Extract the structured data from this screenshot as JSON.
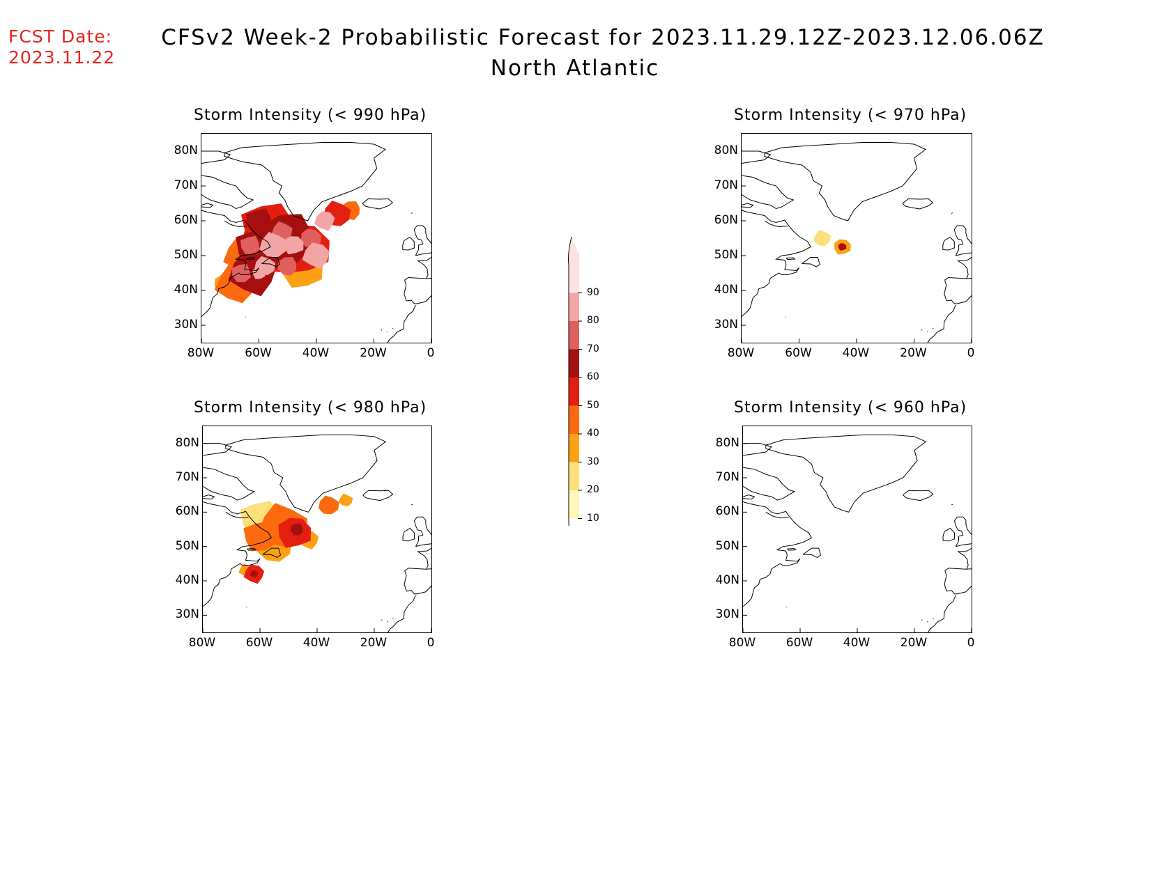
{
  "fcst": {
    "label": "FCST Date:",
    "date": "2023.11.22"
  },
  "title": {
    "line1": "CFSv2 Week-2 Probabilistic Forecast for 2023.11.29.12Z-2023.12.06.06Z",
    "line2": "North Atlantic"
  },
  "panels": [
    {
      "title": "Storm Intensity (< 990 hPa)",
      "threshold": 990
    },
    {
      "title": "Storm Intensity (< 970 hPa)",
      "threshold": 970
    },
    {
      "title": "Storm Intensity (< 980 hPa)",
      "threshold": 980
    },
    {
      "title": "Storm Intensity (< 960 hPa)",
      "threshold": 960
    }
  ],
  "axes": {
    "lat_ticks": [
      "80N",
      "70N",
      "60N",
      "50N",
      "40N",
      "30N"
    ],
    "lon_ticks": [
      "80W",
      "60W",
      "40W",
      "20W",
      "0"
    ],
    "lat_range": [
      25,
      85
    ],
    "lon_range": [
      -80,
      0
    ]
  },
  "colorbar": {
    "levels": [
      "10",
      "20",
      "30",
      "40",
      "50",
      "60",
      "70",
      "80",
      "90"
    ],
    "colors": [
      "#fff7b5",
      "#fde07a",
      "#fca014",
      "#fb6a0f",
      "#e51f10",
      "#a50f0f",
      "#e06060",
      "#f2a5a5",
      "#fde2e2"
    ]
  },
  "colors": {
    "fcst_red": "#e8231f"
  }
}
